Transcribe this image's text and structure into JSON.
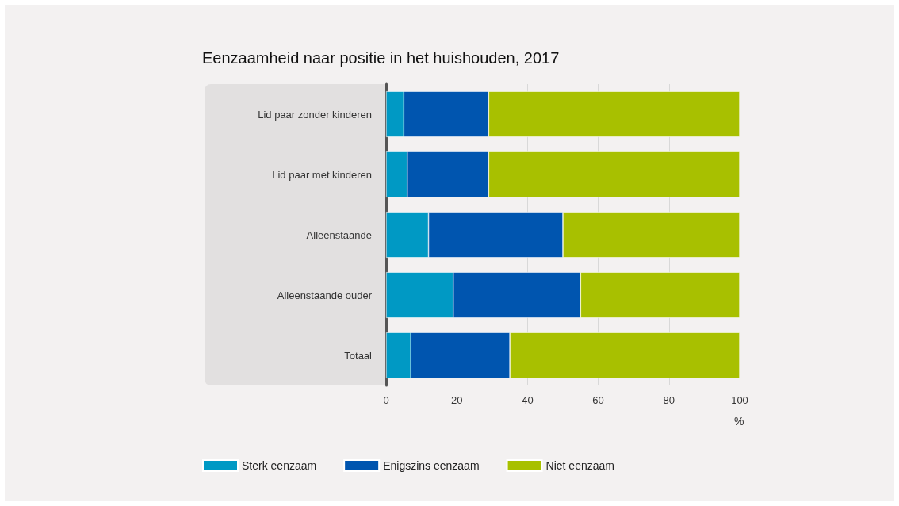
{
  "chart_data": {
    "type": "bar",
    "orientation": "horizontal",
    "stacked": true,
    "title": "Eenzaamheid naar positie in het huishouden, 2017",
    "xlabel": "%",
    "categories": [
      "Lid paar zonder kinderen",
      "Lid paar met kinderen",
      "Alleenstaande",
      "Alleenstaande ouder",
      "Totaal"
    ],
    "series": [
      {
        "name": "Sterk eenzaam",
        "color": "#0099c4",
        "values": [
          5,
          6,
          12,
          19,
          7
        ]
      },
      {
        "name": "Enigszins eenzaam",
        "color": "#0055af",
        "values": [
          24,
          23,
          38,
          36,
          28
        ]
      },
      {
        "name": "Niet eenzaam",
        "color": "#a8c000",
        "values": [
          71,
          71,
          50,
          45,
          65
        ]
      }
    ],
    "xlim": [
      0,
      100
    ],
    "xticks": [
      0,
      20,
      40,
      60,
      80,
      100
    ],
    "grid": "x",
    "legend": "bottom left"
  }
}
